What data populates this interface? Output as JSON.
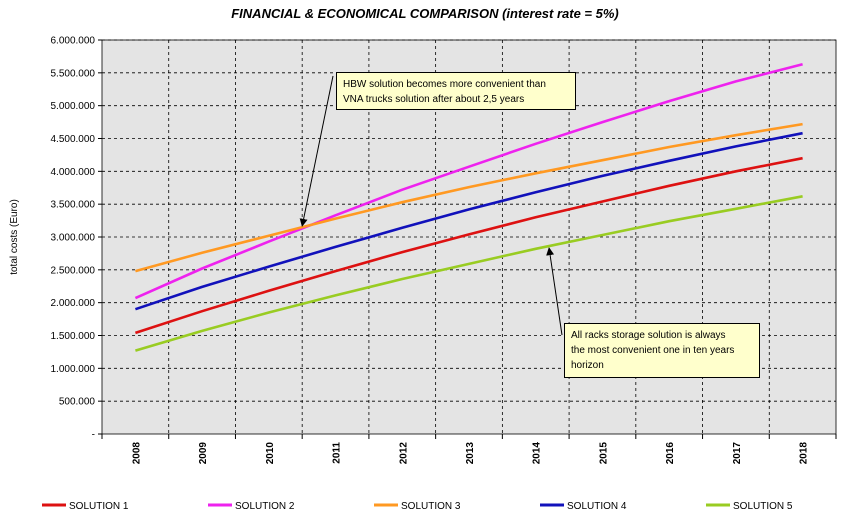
{
  "chart_data": {
    "type": "line",
    "title": "FINANCIAL & ECONOMICAL COMPARISON (interest rate = 5%)",
    "xlabel": "",
    "ylabel": "total costs (Euro)",
    "categories": [
      "2008",
      "2009",
      "2010",
      "2011",
      "2012",
      "2013",
      "2014",
      "2015",
      "2016",
      "2017",
      "2018"
    ],
    "ylim": [
      0,
      6000000
    ],
    "yticks": [
      0,
      500000,
      1000000,
      1500000,
      2000000,
      2500000,
      3000000,
      3500000,
      4000000,
      4500000,
      5000000,
      5500000,
      6000000
    ],
    "ytick_labels": [
      "-",
      "500.000",
      "1.000.000",
      "1.500.000",
      "2.000.000",
      "2.500.000",
      "3.000.000",
      "3.500.000",
      "4.000.000",
      "4.500.000",
      "5.000.000",
      "5.500.000",
      "6.000.000"
    ],
    "grid": true,
    "legend_position": "bottom",
    "series": [
      {
        "name": "SOLUTION 1",
        "color": "#dd1111",
        "values": [
          1540000,
          1870000,
          2180000,
          2480000,
          2770000,
          3040000,
          3300000,
          3540000,
          3780000,
          4000000,
          4200000
        ]
      },
      {
        "name": "SOLUTION 2",
        "color": "#ee22ee",
        "values": [
          2070000,
          2520000,
          2930000,
          3330000,
          3720000,
          4070000,
          4420000,
          4750000,
          5070000,
          5370000,
          5630000
        ]
      },
      {
        "name": "SOLUTION 3",
        "color": "#ff9922",
        "values": [
          2480000,
          2760000,
          3020000,
          3280000,
          3530000,
          3760000,
          3970000,
          4170000,
          4370000,
          4550000,
          4720000
        ]
      },
      {
        "name": "SOLUTION 4",
        "color": "#1111bb",
        "values": [
          1900000,
          2240000,
          2550000,
          2850000,
          3140000,
          3420000,
          3680000,
          3930000,
          4160000,
          4380000,
          4580000
        ]
      },
      {
        "name": "SOLUTION 5",
        "color": "#99cc22",
        "values": [
          1270000,
          1570000,
          1850000,
          2110000,
          2360000,
          2590000,
          2820000,
          3030000,
          3240000,
          3430000,
          3620000
        ]
      }
    ],
    "annotations": [
      {
        "text_line1": "HBW solution becomes more convenient than",
        "text_line2": "VNA trucks solution after about 2,5 years",
        "target": [
          2010.5,
          3170000
        ]
      },
      {
        "text_line1": "All racks storage solution is always",
        "text_line2": "the most convenient one in ten years",
        "text_line3": "horizon",
        "target": [
          2014.2,
          2830000
        ]
      }
    ]
  }
}
